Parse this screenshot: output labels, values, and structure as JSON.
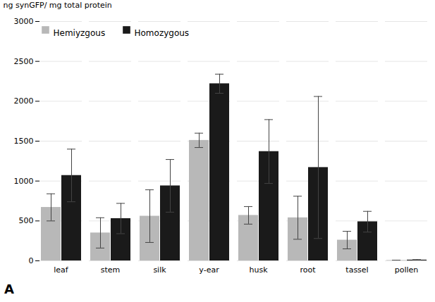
{
  "chart_data": {
    "type": "bar",
    "categories": [
      "leaf",
      "stem",
      "silk",
      "y-ear",
      "husk",
      "root",
      "tassel",
      "pollen"
    ],
    "series": [
      {
        "name": "Hemiyzgous",
        "color": "#b8b8b8",
        "values": [
          670,
          350,
          560,
          1510,
          570,
          540,
          260,
          5
        ],
        "errors": [
          170,
          190,
          330,
          90,
          110,
          270,
          110,
          3
        ]
      },
      {
        "name": "Homozygous",
        "color": "#1a1a1a",
        "values": [
          1070,
          530,
          940,
          2220,
          1370,
          1170,
          490,
          10
        ],
        "errors": [
          330,
          190,
          330,
          120,
          400,
          890,
          130,
          5
        ]
      }
    ],
    "ylabel": "ng synGFP/ mg total protein",
    "ylim": [
      0,
      3000
    ],
    "yticks": [
      0,
      500,
      1000,
      1500,
      2000,
      2500,
      3000
    ],
    "grid": true,
    "legend": "upper left",
    "annotations": [
      "A"
    ]
  }
}
